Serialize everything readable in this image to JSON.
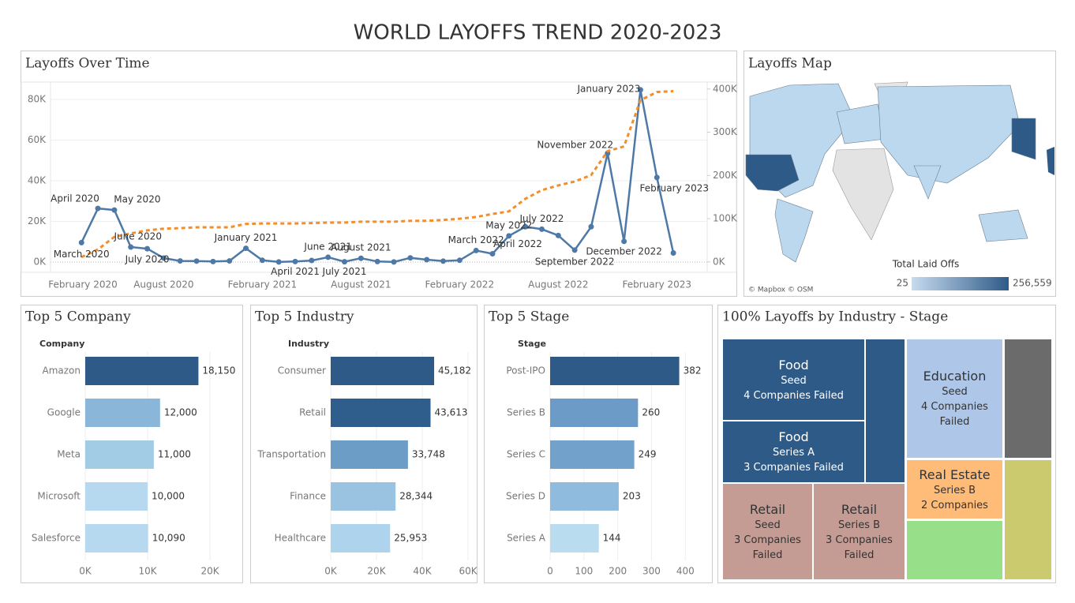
{
  "title": "WORLD LAYOFFS TREND 2020-2023",
  "map": {
    "title": "Layoffs Map",
    "legend_title": "Total Laid Offs",
    "legend_range": [
      25,
      {
        "value": 256559,
        "label": "256,559"
      }
    ],
    "color_range": [
      "#c6dbef",
      "#2e5a87"
    ],
    "attribution": "© Mapbox © OSM"
  },
  "chart_data": [
    {
      "type": "line",
      "title": "Layoffs Over Time",
      "categories": [
        "February 2020",
        null,
        null,
        null,
        null,
        null,
        "August 2020",
        null,
        null,
        null,
        null,
        null,
        "February 2021",
        null,
        null,
        null,
        null,
        null,
        "August 2021",
        null,
        null,
        null,
        null,
        null,
        "February 2022",
        null,
        null,
        null,
        null,
        null,
        "August 2022",
        null,
        null,
        null,
        null,
        null,
        "February 2023",
        null
      ],
      "point_labels": [
        null,
        "March 2020",
        "April 2020",
        "May 2020",
        "June 2020",
        "July 2020",
        null,
        null,
        null,
        null,
        null,
        "January 2021",
        null,
        null,
        "April 2021",
        null,
        "June 2021",
        "July 2021",
        "August 2021",
        null,
        null,
        null,
        null,
        null,
        null,
        "March 2022",
        "April 2022",
        "May 2022",
        null,
        "July 2022",
        null,
        "September 2022",
        null,
        "November 2022",
        "December 2022",
        "January 2023",
        "February 2023",
        null
      ],
      "series": [
        {
          "color": "#4e79a7",
          "line_style": "solid",
          "markers": true,
          "values": [
            null,
            9600,
            26400,
            25600,
            7400,
            6600,
            2000,
            600,
            500,
            300,
            600,
            6800,
            900,
            100,
            300,
            800,
            2400,
            200,
            1900,
            300,
            100,
            2100,
            1200,
            500,
            900,
            5700,
            4100,
            12900,
            17400,
            16200,
            13100,
            5900,
            17400,
            53500,
            10200,
            84700,
            41600,
            4500
          ]
        },
        {
          "color": "#f28e2b",
          "line_style": "dashed",
          "markers": false,
          "axis": "y2",
          "values": [
            null,
            11000,
            29000,
            58000,
            66000,
            73000,
            77000,
            78000,
            80000,
            80000,
            80000,
            88000,
            89000,
            89000,
            89000,
            90000,
            91000,
            91000,
            93000,
            93000,
            93000,
            95000,
            95000,
            97000,
            100000,
            104000,
            111000,
            117000,
            146000,
            166000,
            177000,
            186000,
            201000,
            256000,
            267000,
            374000,
            393000,
            395000
          ]
        }
      ],
      "ylim": [
        -5000,
        88500
      ],
      "yticks": [
        {
          "value": 0,
          "label": "0K"
        },
        {
          "value": 20000,
          "label": "20K"
        },
        {
          "value": 40000,
          "label": "40K"
        },
        {
          "value": 60000,
          "label": "60K"
        },
        {
          "value": 80000,
          "label": "80K"
        }
      ],
      "y2lim": [
        -24000,
        416000
      ],
      "y2ticks": [
        {
          "value": 0,
          "label": "0K"
        },
        {
          "value": 100000,
          "label": "100K"
        },
        {
          "value": 200000,
          "label": "200K"
        },
        {
          "value": 300000,
          "label": "300K"
        },
        {
          "value": 400000,
          "label": "400K"
        }
      ],
      "grid": true
    },
    {
      "type": "bar",
      "orientation": "horizontal",
      "title": "Top 5 Company",
      "category_label": "Company",
      "categories": [
        "Amazon",
        "Google",
        "Meta",
        "Microsoft",
        "Salesforce"
      ],
      "values": [
        18150,
        12000,
        11000,
        10000,
        10090
      ],
      "value_labels": [
        "18,150",
        "12,000",
        "11,000",
        "10,000",
        "10,090"
      ],
      "colors": [
        "#2e5a87",
        "#8ab6da",
        "#a2cbe6",
        "#b7d9ef",
        "#b7d9ef"
      ],
      "xlim": [
        0,
        24300
      ],
      "xticks": [
        {
          "value": 0,
          "label": "0K"
        },
        {
          "value": 10000,
          "label": "10K"
        },
        {
          "value": 20000,
          "label": "20K"
        }
      ],
      "grid": true
    },
    {
      "type": "bar",
      "orientation": "horizontal",
      "title": "Top 5 Industry",
      "category_label": "Industry",
      "categories": [
        "Consumer",
        "Retail",
        "Transportation",
        "Finance",
        "Healthcare"
      ],
      "values": [
        45182,
        43613,
        33748,
        28344,
        25953
      ],
      "value_labels": [
        "45,182",
        "43,613",
        "33,748",
        "28,344",
        "25,953"
      ],
      "colors": [
        "#2e5a87",
        "#2f5d8c",
        "#6c9dc7",
        "#9ac3e1",
        "#aed3ec"
      ],
      "xlim": [
        0,
        63100
      ],
      "xticks": [
        {
          "value": 0,
          "label": "0K"
        },
        {
          "value": 20000,
          "label": "20K"
        },
        {
          "value": 40000,
          "label": "40K"
        },
        {
          "value": 60000,
          "label": "60K"
        }
      ],
      "grid": true
    },
    {
      "type": "bar",
      "orientation": "horizontal",
      "title": "Top 5 Stage",
      "category_label": "Stage",
      "categories": [
        "Post-IPO",
        "Series B",
        "Series C",
        "Series D",
        "Series A"
      ],
      "values": [
        382,
        260,
        249,
        203,
        144
      ],
      "colors": [
        "#2e5a87",
        "#6b9bc6",
        "#72a2cb",
        "#8ebbde",
        "#b9ddef"
      ],
      "xlim": [
        0,
        425
      ],
      "xticks": [
        0,
        100,
        200,
        300,
        400
      ],
      "grid": true
    },
    {
      "type": "treemap",
      "title": "100% Layoffs by Industry - Stage",
      "categories": [
        "Food",
        "Food",
        "Retail",
        "Retail",
        "Education",
        "Real Estate"
      ],
      "stages": [
        "Seed",
        "Series A",
        "Seed",
        "Series B",
        "Seed",
        "Series B"
      ],
      "values": [
        4,
        3,
        3,
        3,
        4,
        2
      ],
      "value_labels": [
        "4 Companies Failed",
        "3 Companies Failed",
        "3 Companies Failed",
        "3 Companies Failed",
        "4 Companies Failed",
        "2 Companies"
      ],
      "colors": [
        "#2e5a87",
        "#2e5a87",
        "#c49c94",
        "#c49c94",
        "#aec7e8",
        "#ffbb78"
      ],
      "text_colors": [
        "#ffffff",
        "#ffffff",
        "#333333",
        "#333333",
        "#333333",
        "#333333"
      ],
      "unlabeled_colors": [
        "#2e5a87",
        "#98df8a",
        "#6b6b6b",
        "#cbca6e"
      ]
    }
  ]
}
